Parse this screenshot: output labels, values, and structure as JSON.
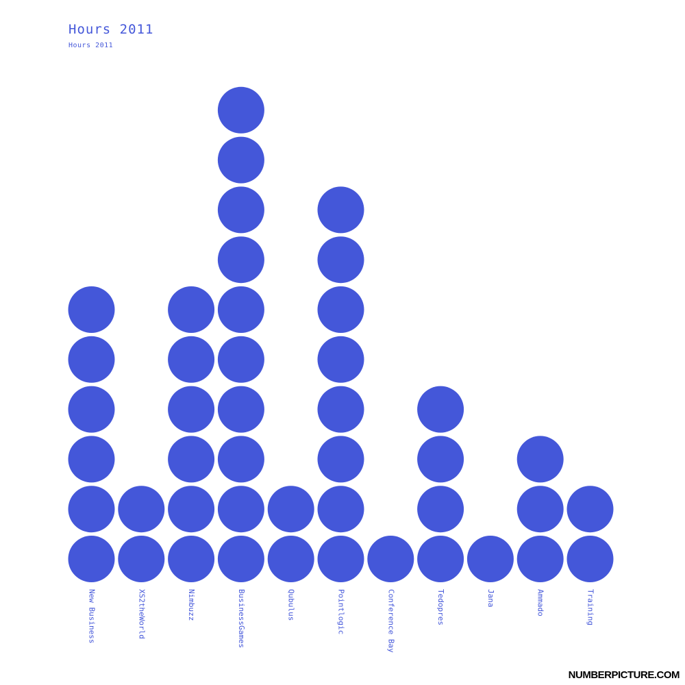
{
  "title": "Hours 2011",
  "subtitle": "Hours 2011",
  "brand": "NUMBERPICTURE.COM",
  "colors": {
    "dot": "#4457d9",
    "text": "#4457d9",
    "brand": "#000000"
  },
  "chart_data": {
    "type": "bar",
    "style": "dot-stack",
    "title": "Hours 2011",
    "subtitle": "Hours 2011",
    "categories": [
      "New Business",
      "XS2theWorld",
      "Nimbuzz",
      "BusinessGames",
      "Qubulus",
      "Pointlogic",
      "Conference Bay",
      "Tedopres",
      "Jana",
      "Ammado",
      "Training"
    ],
    "values": [
      6,
      2,
      6,
      10,
      2,
      8,
      1,
      4,
      1,
      3,
      2
    ],
    "grid": false,
    "legend": "none"
  }
}
